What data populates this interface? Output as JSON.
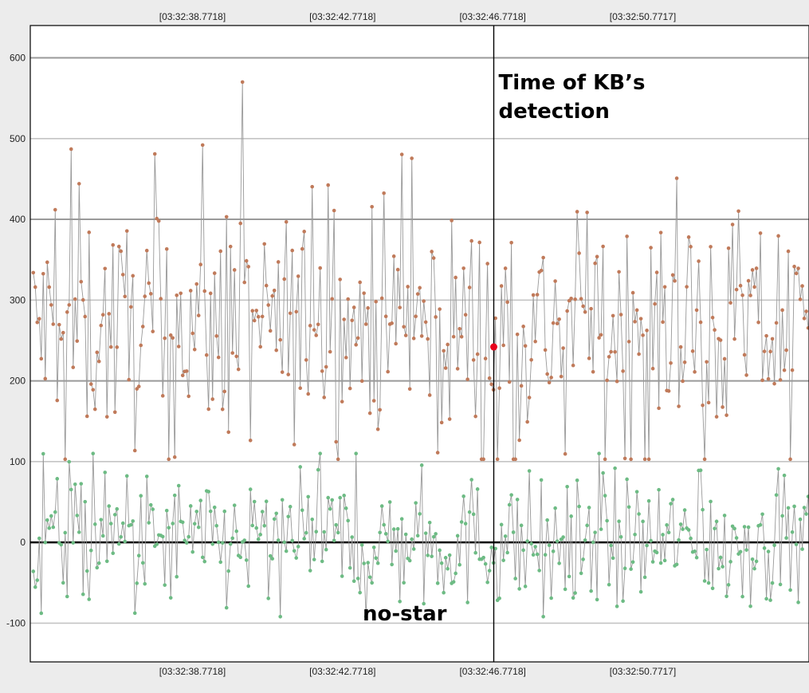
{
  "colors": {
    "background": "#ececec",
    "plot_background": "#ffffff",
    "grid_major": "#9a9a9a",
    "grid_minor": "#c4c4c4",
    "trace_line": "#999999",
    "upper_series_marker": "#c07a5a",
    "lower_series_marker": "#6dbb84",
    "highlight_point": "#e8001c"
  },
  "chart_data": {
    "type": "line",
    "title": "",
    "xlabel": "",
    "ylabel": "",
    "ylim": [
      -148,
      640
    ],
    "grid": true,
    "legend": "none",
    "y_ticks": [
      -100,
      0,
      100,
      200,
      300,
      400,
      500,
      600
    ],
    "x_range_seconds": [
      34.45,
      55.2
    ],
    "x_ticks": [
      {
        "label": "[03:32:38.7718]",
        "t": 38.7718
      },
      {
        "label": "[03:32:42.7718]",
        "t": 42.7718
      },
      {
        "label": "[03:32:46.7718]",
        "t": 46.7718
      },
      {
        "label": "[03:32:50.7717]",
        "t": 50.7717
      }
    ],
    "series": [
      {
        "color": "#c07a5a",
        "sample_count": 390,
        "range": [
          103,
          570
        ]
      },
      {
        "color": "#6dbb84",
        "sample_count": 390,
        "range": [
          -92,
          110
        ]
      }
    ],
    "highlight_point": {
      "t": 46.8,
      "y": 242
    },
    "annotations": {
      "event_line_t": 46.8,
      "event_label": "Time of KB’s detection",
      "event_label_lines": [
        "Time of KB’s",
        "detection"
      ],
      "bottom_label": "no-star"
    }
  }
}
